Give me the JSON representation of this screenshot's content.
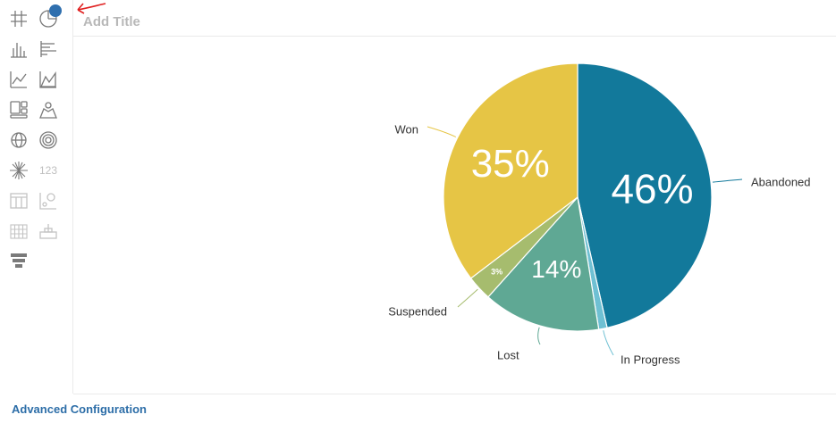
{
  "header": {
    "title_placeholder": "Add Title"
  },
  "toolbar": {
    "items": [
      {
        "icon": "grid-icon"
      },
      {
        "icon": "pie-chart-icon",
        "selected": true
      },
      {
        "icon": "bar-chart-icon"
      },
      {
        "icon": "horizontal-bar-chart-icon"
      },
      {
        "icon": "line-chart-icon"
      },
      {
        "icon": "area-chart-icon"
      },
      {
        "icon": "tiles-icon"
      },
      {
        "icon": "map-icon"
      },
      {
        "icon": "globe-icon"
      },
      {
        "icon": "radar-icon"
      },
      {
        "icon": "sunburst-icon"
      },
      {
        "icon": "number-icon",
        "label": "123"
      },
      {
        "icon": "table-icon"
      },
      {
        "icon": "scatter-icon"
      },
      {
        "icon": "pivot-grid-icon"
      },
      {
        "icon": "gauge-icon"
      },
      {
        "icon": "funnel-icon"
      }
    ]
  },
  "footer": {
    "advanced_label": "Advanced Configuration"
  },
  "colors": {
    "accent": "#2d6ea8",
    "abandoned": "#12799b",
    "in_progress": "#6fc0d3",
    "lost": "#5fa894",
    "suspended": "#a6bc6e",
    "won": "#e6c545"
  },
  "chart_data": {
    "type": "pie",
    "slices": [
      {
        "label": "Abandoned",
        "value": 46,
        "display": "46%"
      },
      {
        "label": "In Progress",
        "value": 1,
        "display": ""
      },
      {
        "label": "Lost",
        "value": 14,
        "display": "14%"
      },
      {
        "label": "Suspended",
        "value": 3,
        "display": "3%"
      },
      {
        "label": "Won",
        "value": 35,
        "display": "35%"
      }
    ]
  }
}
